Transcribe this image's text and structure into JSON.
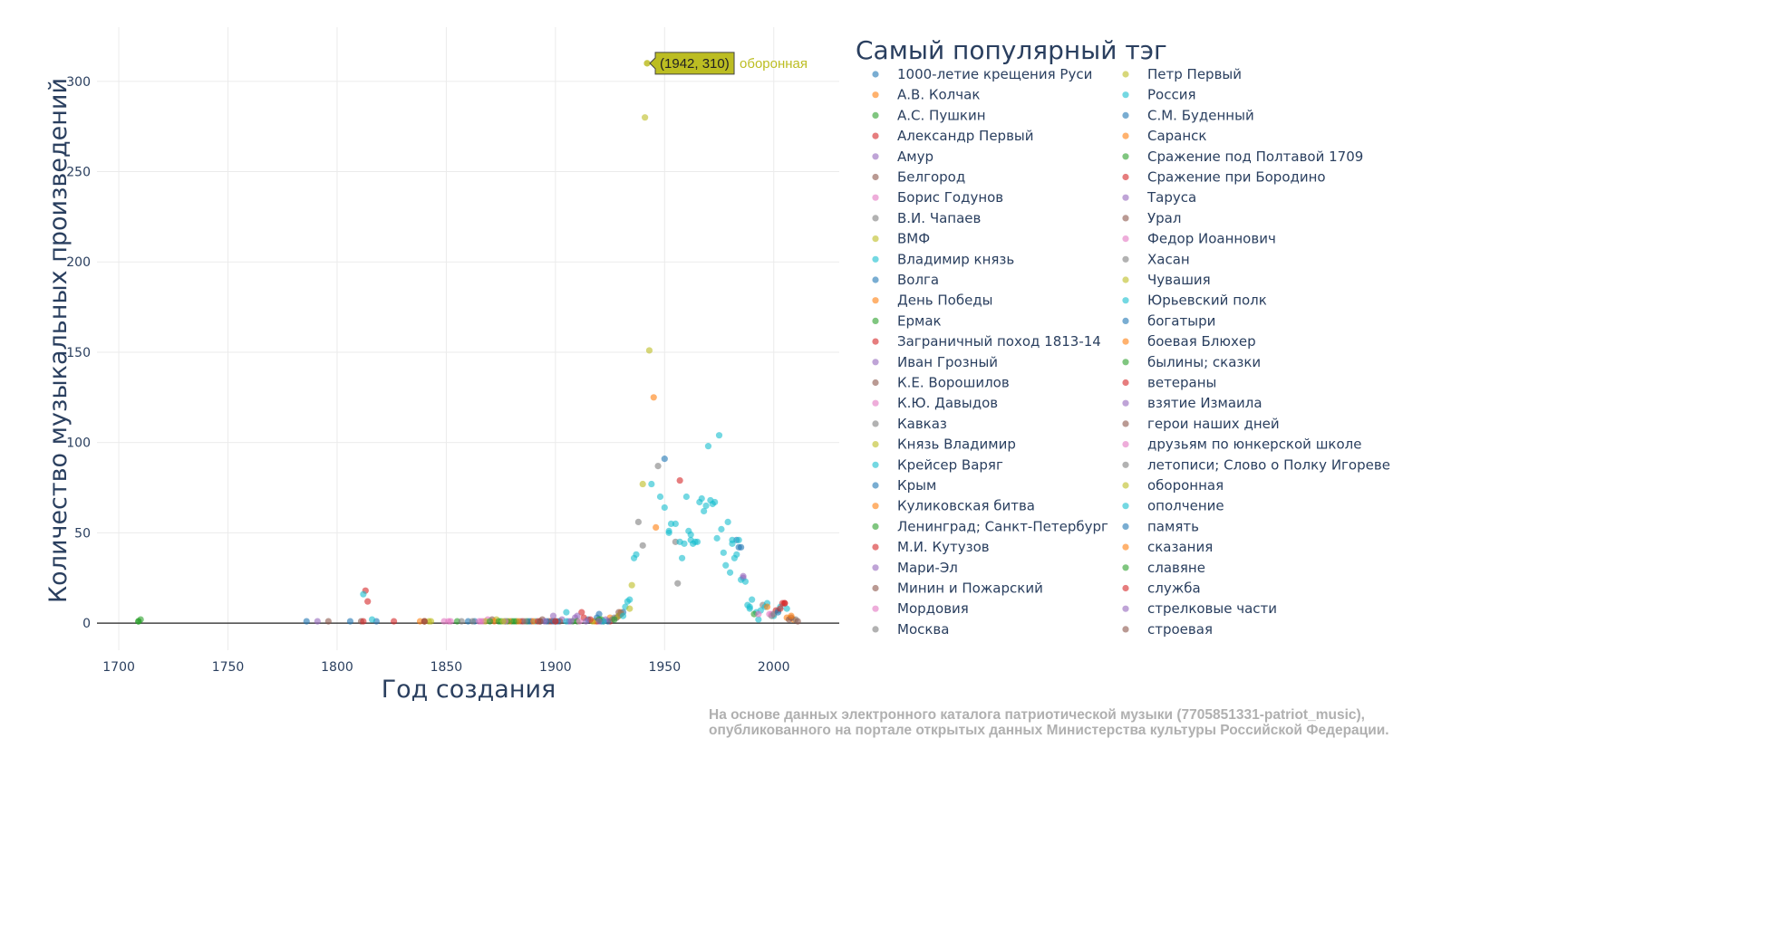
{
  "chart_data": {
    "type": "scatter",
    "xlabel": "Год создания",
    "ylabel": "Количество музыкальных произведений",
    "xlim": [
      1690,
      2030
    ],
    "ylim": [
      -15,
      330
    ],
    "x_ticks": [
      1700,
      1750,
      1800,
      1850,
      1900,
      1950,
      2000
    ],
    "y_ticks": [
      0,
      50,
      100,
      150,
      200,
      250,
      300
    ],
    "grid": true,
    "legend_title": "Самый популярный тэг",
    "legend_position": "right",
    "hover": {
      "label": "(1942, 310)",
      "tag": "оборонная",
      "x": 1942,
      "y": 310,
      "color": "#bcbd22"
    },
    "series": [
      {
        "name": "1000-летие крещения Руси",
        "color": "#1f77b4",
        "points": [
          [
            1786,
            1
          ],
          [
            1806,
            1
          ],
          [
            1818,
            1
          ],
          [
            1860,
            1
          ],
          [
            1920,
            5
          ],
          [
            1985,
            42
          ]
        ]
      },
      {
        "name": "А.В. Колчак",
        "color": "#ff7f0e",
        "points": [
          [
            1930,
            6
          ],
          [
            1946,
            53
          ],
          [
            2009,
            2
          ]
        ]
      },
      {
        "name": "А.С. Пушкин",
        "color": "#2ca02c",
        "points": [
          [
            1709,
            1
          ],
          [
            1710,
            2
          ],
          [
            1875,
            1
          ],
          [
            1877,
            1
          ]
        ]
      },
      {
        "name": "Александр Первый",
        "color": "#d62728",
        "points": [
          [
            1813,
            18
          ],
          [
            1814,
            12
          ],
          [
            1826,
            1
          ],
          [
            1957,
            79
          ],
          [
            2005,
            11
          ]
        ]
      },
      {
        "name": "Амур",
        "color": "#9467bd",
        "points": [
          [
            1791,
            1
          ],
          [
            1899,
            4
          ],
          [
            1986,
            25
          ]
        ]
      },
      {
        "name": "Белгород",
        "color": "#8c564b",
        "points": [
          [
            1796,
            1
          ],
          [
            1811,
            1
          ],
          [
            1871,
            2
          ],
          [
            1929,
            4
          ]
        ]
      },
      {
        "name": "Борис Годунов",
        "color": "#e377c2",
        "points": [
          [
            1849,
            1
          ],
          [
            1852,
            1
          ],
          [
            1869,
            2
          ]
        ]
      },
      {
        "name": "В.И. Чапаев",
        "color": "#7f7f7f",
        "points": [
          [
            1938,
            56
          ],
          [
            1940,
            43
          ],
          [
            1947,
            87
          ],
          [
            1955,
            45
          ],
          [
            1956,
            22
          ]
        ]
      },
      {
        "name": "ВМФ",
        "color": "#bcbd22",
        "points": [
          [
            1840,
            1
          ],
          [
            1843,
            1
          ],
          [
            1935,
            21
          ],
          [
            1941,
            280
          ],
          [
            1943,
            151
          ]
        ]
      },
      {
        "name": "Владимир князь",
        "color": "#17becf",
        "points": [
          [
            1812,
            16
          ],
          [
            1816,
            2
          ],
          [
            1933,
            12
          ],
          [
            1936,
            36
          ],
          [
            1960,
            70
          ],
          [
            1970,
            98
          ],
          [
            1975,
            104
          ]
        ]
      },
      {
        "name": "Волга",
        "color": "#1f77b4",
        "points": [
          [
            1863,
            1
          ],
          [
            1915,
            2
          ],
          [
            1983,
            46
          ]
        ]
      },
      {
        "name": "День Победы",
        "color": "#ff7f0e",
        "points": [
          [
            1838,
            1
          ],
          [
            1925,
            3
          ],
          [
            1945,
            125
          ]
        ]
      },
      {
        "name": "Ермак",
        "color": "#2ca02c",
        "points": [
          [
            1855,
            1
          ],
          [
            1880,
            1
          ],
          [
            1908,
            1
          ]
        ]
      },
      {
        "name": "Заграничный поход 1813-14",
        "color": "#d62728",
        "points": [
          [
            1912,
            6
          ],
          [
            1919,
            1
          ],
          [
            1925,
            1
          ]
        ]
      },
      {
        "name": "Иван Грозный",
        "color": "#9467bd",
        "points": [
          [
            1903,
            2
          ],
          [
            1910,
            4
          ]
        ]
      },
      {
        "name": "К.Е. Ворошилов",
        "color": "#8c564b",
        "points": [
          [
            1889,
            1
          ],
          [
            1894,
            2
          ],
          [
            1902,
            1
          ]
        ]
      },
      {
        "name": "К.Ю. Давыдов",
        "color": "#e377c2",
        "points": [
          [
            1865,
            1
          ],
          [
            1867,
            1
          ],
          [
            1998,
            5
          ]
        ]
      },
      {
        "name": "Кавказ",
        "color": "#7f7f7f",
        "points": [
          [
            1884,
            1
          ],
          [
            1922,
            1
          ],
          [
            1995,
            10
          ],
          [
            2010,
            2
          ]
        ]
      },
      {
        "name": "Князь Владимир",
        "color": "#bcbd22",
        "points": [
          [
            1842,
            1
          ],
          [
            1873,
            2
          ],
          [
            1940,
            77
          ]
        ]
      },
      {
        "name": "Крейсер Варяг",
        "color": "#17becf",
        "points": [
          [
            1905,
            6
          ],
          [
            1932,
            9
          ],
          [
            1937,
            38
          ],
          [
            1944,
            77
          ],
          [
            1948,
            70
          ],
          [
            1950,
            64
          ],
          [
            1952,
            51
          ],
          [
            1953,
            55
          ],
          [
            1955,
            55
          ],
          [
            1957,
            45
          ],
          [
            1958,
            36
          ],
          [
            1959,
            44
          ],
          [
            1961,
            51
          ],
          [
            1962,
            49
          ],
          [
            1963,
            44
          ],
          [
            1964,
            45
          ],
          [
            1965,
            45
          ],
          [
            1966,
            67
          ],
          [
            1967,
            69
          ],
          [
            1968,
            62
          ],
          [
            1969,
            65
          ],
          [
            1971,
            68
          ],
          [
            1972,
            66
          ],
          [
            1973,
            67
          ],
          [
            1974,
            47
          ],
          [
            1976,
            52
          ],
          [
            1977,
            39
          ],
          [
            1978,
            32
          ],
          [
            1979,
            56
          ],
          [
            1980,
            28
          ],
          [
            1981,
            46
          ],
          [
            1982,
            36
          ],
          [
            1984,
            46
          ],
          [
            1985,
            24
          ],
          [
            1987,
            23
          ],
          [
            1988,
            10
          ],
          [
            1989,
            8
          ],
          [
            1990,
            13
          ],
          [
            1992,
            6
          ],
          [
            1993,
            2
          ],
          [
            1994,
            7
          ],
          [
            1996,
            9
          ],
          [
            1997,
            11
          ],
          [
            2000,
            4
          ],
          [
            2002,
            7
          ]
        ]
      },
      {
        "name": "Крым",
        "color": "#1f77b4",
        "points": [
          [
            1901,
            1
          ],
          [
            1924,
            1
          ],
          [
            1931,
            6
          ],
          [
            1950,
            91
          ]
        ]
      },
      {
        "name": "Куликовская битва",
        "color": "#ff7f0e",
        "points": [
          [
            1879,
            1
          ],
          [
            1918,
            1
          ],
          [
            2006,
            3
          ]
        ]
      },
      {
        "name": "Ленинград; Санкт-Петербург",
        "color": "#2ca02c",
        "points": [
          [
            1878,
            1
          ],
          [
            1882,
            1
          ],
          [
            1887,
            1
          ],
          [
            1991,
            5
          ]
        ]
      },
      {
        "name": "М.И. Кутузов",
        "color": "#d62728",
        "points": [
          [
            1840,
            1
          ],
          [
            1898,
            1
          ],
          [
            1913,
            3
          ],
          [
            2001,
            7
          ]
        ]
      },
      {
        "name": "Мари-Эл",
        "color": "#9467bd",
        "points": [
          [
            1909,
            3
          ],
          [
            1906,
            1
          ]
        ]
      },
      {
        "name": "Минин и Пожарский",
        "color": "#8c564b",
        "points": [
          [
            1840,
            1
          ],
          [
            1893,
            1
          ],
          [
            1929,
            6
          ]
        ]
      },
      {
        "name": "Мордовия",
        "color": "#e377c2",
        "points": [
          [
            1877,
            1
          ],
          [
            1993,
            5
          ]
        ]
      },
      {
        "name": "Москва",
        "color": "#7f7f7f",
        "points": [
          [
            1857,
            1
          ],
          [
            1926,
            2
          ],
          [
            1999,
            4
          ]
        ]
      },
      {
        "name": "Петр Первый",
        "color": "#bcbd22",
        "points": [
          [
            1868,
            1
          ],
          [
            1917,
            1
          ],
          [
            1934,
            8
          ]
        ]
      },
      {
        "name": "Россия",
        "color": "#17becf",
        "points": [
          [
            1934,
            13
          ],
          [
            1962,
            46
          ],
          [
            1981,
            44
          ],
          [
            1983,
            38
          ],
          [
            2003,
            9
          ],
          [
            2006,
            8
          ]
        ]
      },
      {
        "name": "С.М. Буденный",
        "color": "#1f77b4",
        "points": [
          [
            1888,
            1
          ],
          [
            1921,
            1
          ],
          [
            1984,
            42
          ]
        ]
      },
      {
        "name": "Саранск",
        "color": "#ff7f0e",
        "points": [
          [
            1872,
            1
          ],
          [
            1997,
            9
          ]
        ]
      },
      {
        "name": "Сражение под Полтавой 1709",
        "color": "#2ca02c",
        "points": [
          [
            1709,
            1
          ],
          [
            1874,
            1
          ],
          [
            1921,
            2
          ]
        ]
      },
      {
        "name": "Сражение при Бородино",
        "color": "#d62728",
        "points": [
          [
            1812,
            1
          ],
          [
            1885,
            1
          ],
          [
            2004,
            11
          ]
        ]
      },
      {
        "name": "Таруса",
        "color": "#9467bd",
        "points": [
          [
            1923,
            2
          ],
          [
            1986,
            26
          ]
        ]
      },
      {
        "name": "Урал",
        "color": "#8c564b",
        "points": [
          [
            1897,
            1
          ],
          [
            1928,
            3
          ],
          [
            2007,
            2
          ]
        ]
      },
      {
        "name": "Федор Иоаннович",
        "color": "#e377c2",
        "points": [
          [
            1866,
            1
          ],
          [
            1999,
            5
          ]
        ]
      },
      {
        "name": "Хасан",
        "color": "#7f7f7f",
        "points": [
          [
            1886,
            1
          ],
          [
            1927,
            3
          ],
          [
            2000,
            5
          ]
        ]
      },
      {
        "name": "Чувашия",
        "color": "#bcbd22",
        "points": [
          [
            1876,
            1
          ],
          [
            1929,
            4
          ]
        ]
      },
      {
        "name": "Юрьевский полк",
        "color": "#17becf",
        "points": [
          [
            1891,
            1
          ],
          [
            1922,
            1
          ],
          [
            1952,
            50
          ],
          [
            1989,
            9
          ]
        ]
      },
      {
        "name": "богатыри",
        "color": "#1f77b4",
        "points": [
          [
            1896,
            1
          ],
          [
            1919,
            3
          ]
        ]
      },
      {
        "name": "боевая Блюхер",
        "color": "#ff7f0e",
        "points": [
          [
            1890,
            1
          ],
          [
            1930,
            5
          ]
        ]
      },
      {
        "name": "былины; сказки",
        "color": "#2ca02c",
        "points": [
          [
            1870,
            1
          ],
          [
            1910,
            1
          ],
          [
            1920,
            2
          ]
        ]
      },
      {
        "name": "ветераны",
        "color": "#d62728",
        "points": [
          [
            1892,
            1
          ],
          [
            1916,
            2
          ],
          [
            2005,
            11
          ]
        ]
      },
      {
        "name": "взятие Измаила",
        "color": "#9467bd",
        "points": [
          [
            1895,
            1
          ],
          [
            1914,
            1
          ]
        ]
      },
      {
        "name": "герои наших дней",
        "color": "#8c564b",
        "points": [
          [
            1900,
            1
          ],
          [
            2008,
            3
          ]
        ]
      },
      {
        "name": "друзьям по юнкерской школе",
        "color": "#e377c2",
        "points": [
          [
            1851,
            1
          ],
          [
            1911,
            1
          ]
        ]
      },
      {
        "name": "летописи; Слово о Полку Игореве",
        "color": "#7f7f7f",
        "points": [
          [
            1862,
            1
          ],
          [
            1930,
            5
          ]
        ]
      },
      {
        "name": "оборонная",
        "color": "#bcbd22",
        "points": [
          [
            1942,
            310
          ]
        ]
      },
      {
        "name": "ополчение",
        "color": "#17becf",
        "points": [
          [
            1905,
            1
          ],
          [
            1931,
            4
          ]
        ]
      },
      {
        "name": "память",
        "color": "#1f77b4",
        "points": [
          [
            1899,
            1
          ],
          [
            2002,
            6
          ]
        ]
      },
      {
        "name": "сказания",
        "color": "#ff7f0e",
        "points": [
          [
            1883,
            1
          ],
          [
            2008,
            4
          ]
        ]
      },
      {
        "name": "славяне",
        "color": "#2ca02c",
        "points": [
          [
            1881,
            1
          ],
          [
            1927,
            2
          ]
        ]
      },
      {
        "name": "служба",
        "color": "#d62728",
        "points": [
          [
            1900,
            1
          ],
          [
            2003,
            8
          ]
        ]
      },
      {
        "name": "стрелковые части",
        "color": "#9467bd",
        "points": [
          [
            1907,
            1
          ],
          [
            1920,
            1
          ]
        ]
      },
      {
        "name": "строевая",
        "color": "#8c564b",
        "points": [
          [
            1893,
            1
          ],
          [
            2011,
            1
          ]
        ]
      }
    ]
  },
  "source_note": "На основе данных электронного каталога патриотической музыки (7705851331-patriot_music),\nопубликованного на портале открытых данных Министерства культуры Российской Федерации."
}
